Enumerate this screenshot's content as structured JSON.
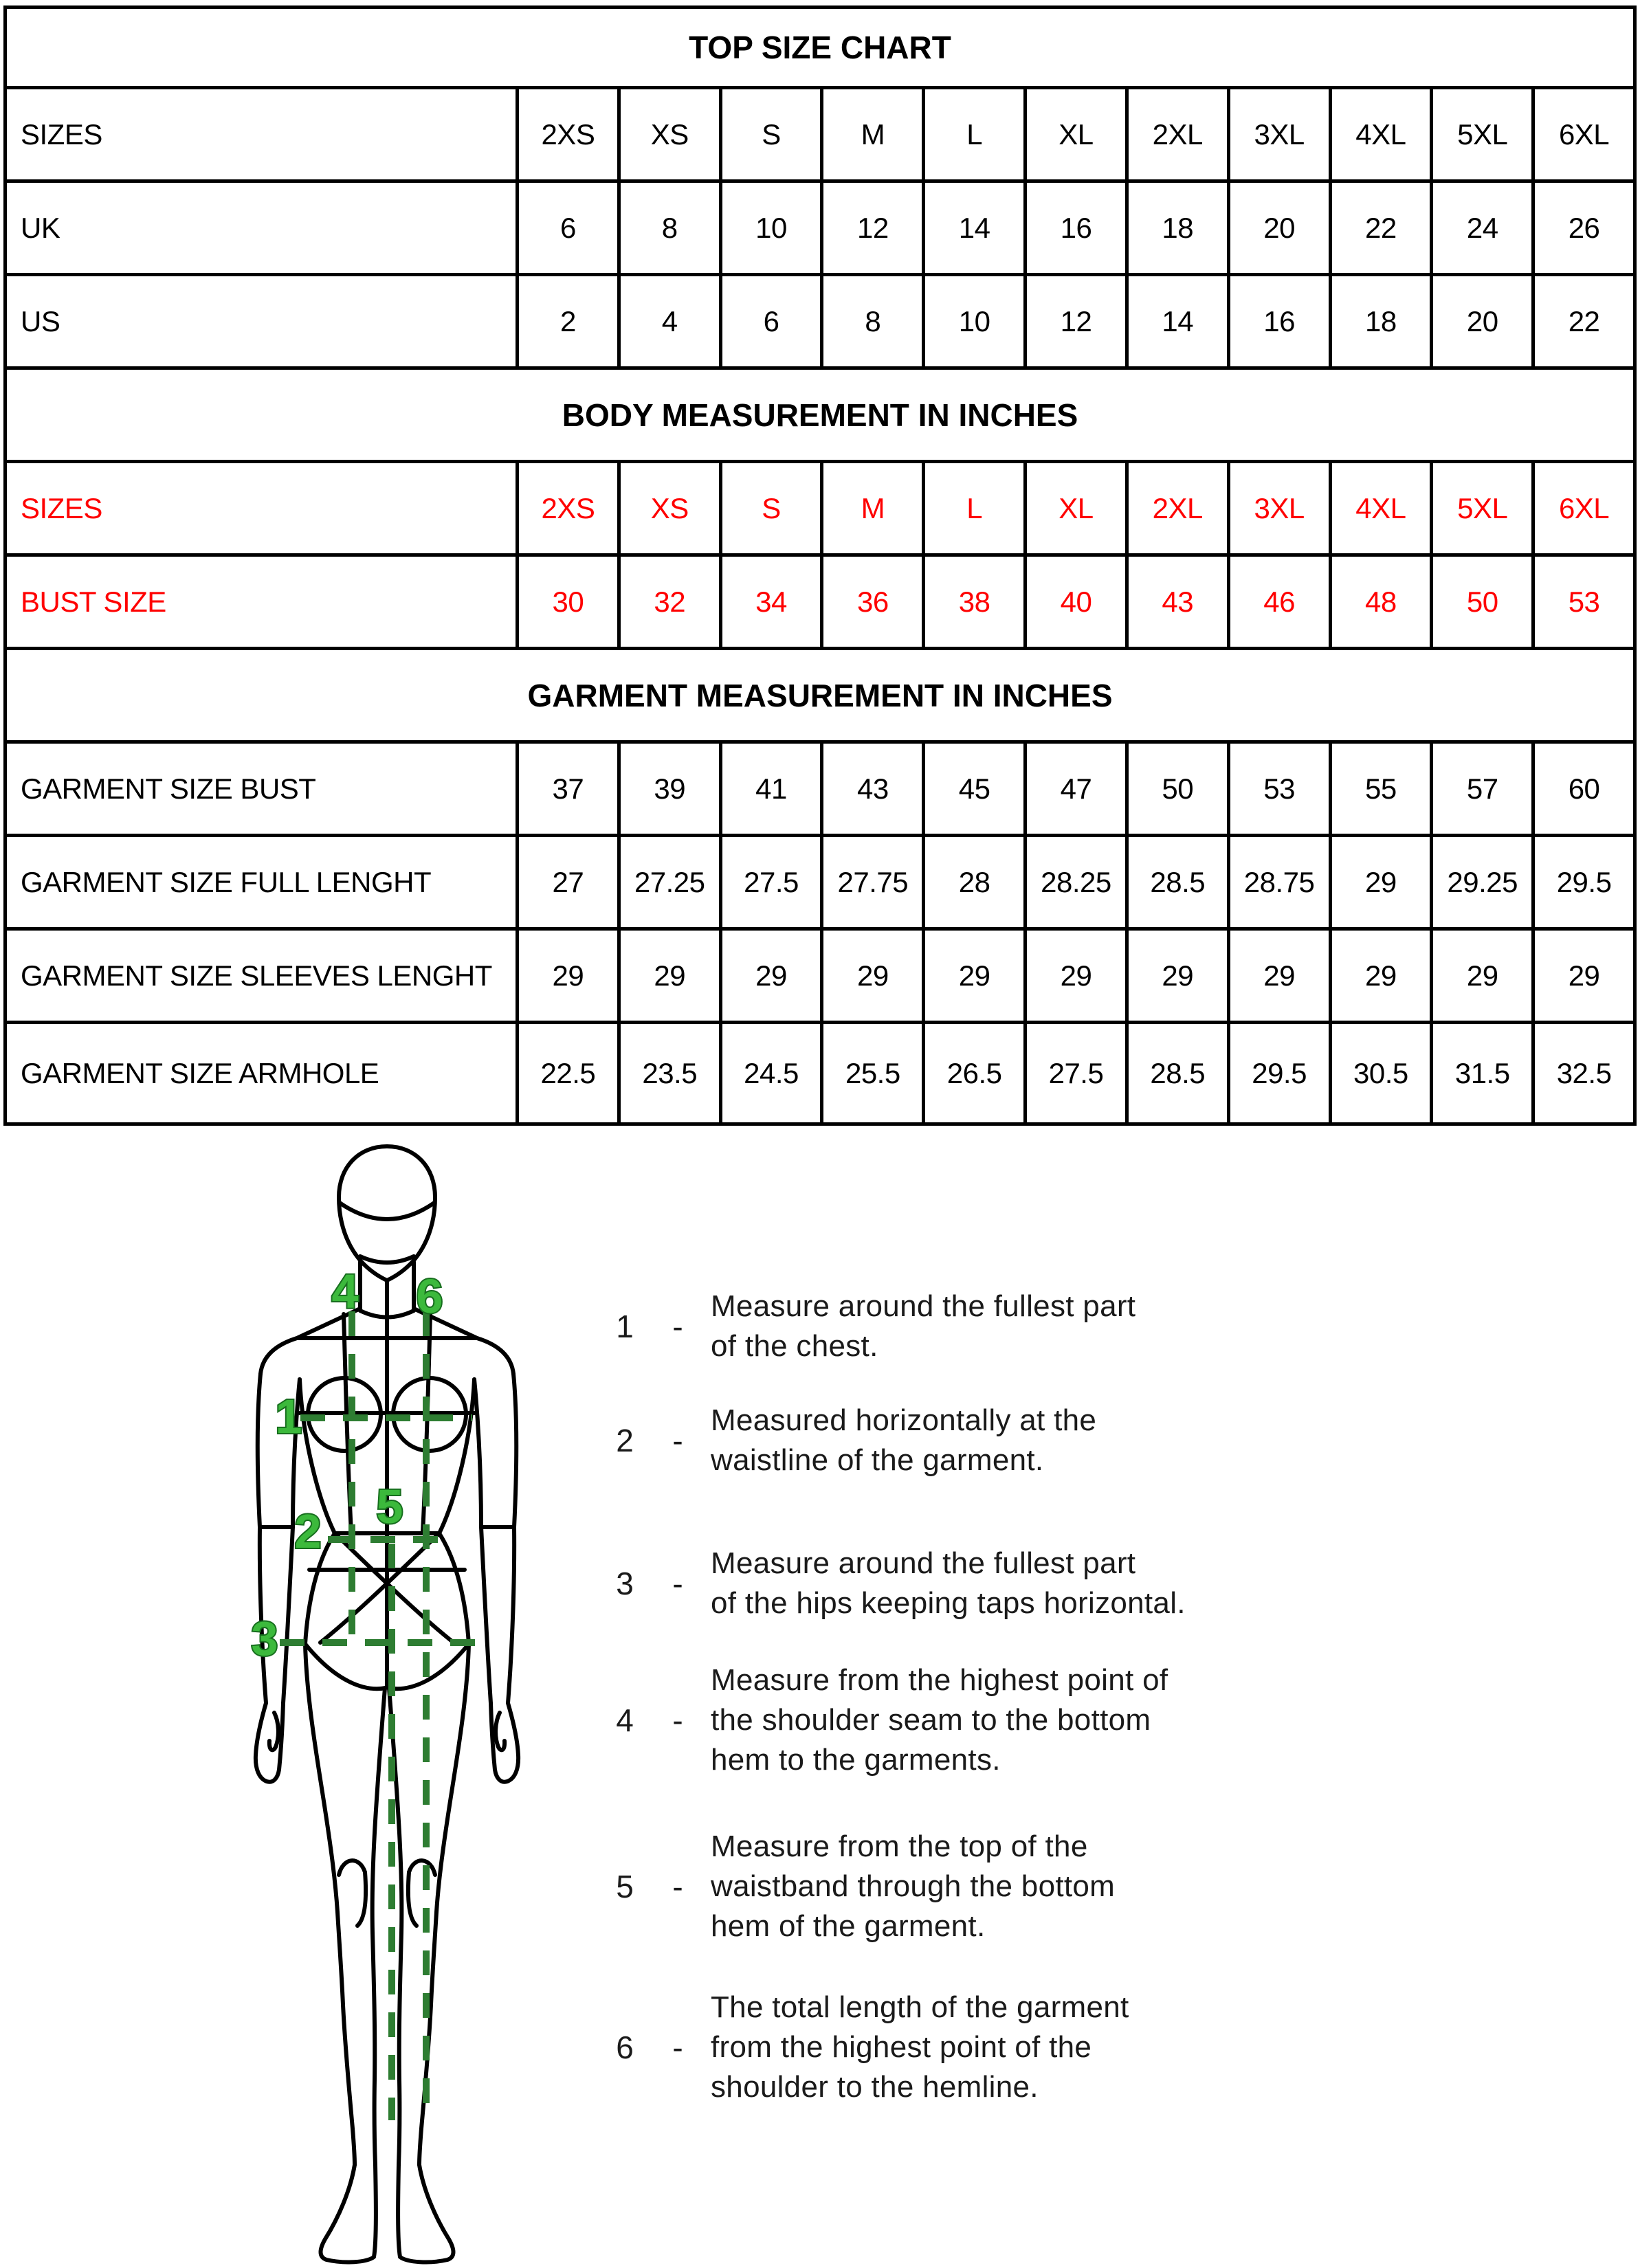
{
  "colors": {
    "table_border": "#000000",
    "text": "#000000",
    "red_text": "#ff0000",
    "green_dash_line": "#2e7d32",
    "green_label_fill": "#3cb93c",
    "green_label_stroke": "#176e1e"
  },
  "table": {
    "rows": [
      {
        "type": "title",
        "label": "TOP SIZE CHART"
      },
      {
        "type": "data",
        "color": "black",
        "label": "SIZES",
        "values": [
          "2XS",
          "XS",
          "S",
          "M",
          "L",
          "XL",
          "2XL",
          "3XL",
          "4XL",
          "5XL",
          "6XL"
        ]
      },
      {
        "type": "data",
        "color": "black",
        "label": "UK",
        "values": [
          "6",
          "8",
          "10",
          "12",
          "14",
          "16",
          "18",
          "20",
          "22",
          "24",
          "26"
        ]
      },
      {
        "type": "data",
        "color": "black",
        "label": "US",
        "values": [
          "2",
          "4",
          "6",
          "8",
          "10",
          "12",
          "14",
          "16",
          "18",
          "20",
          "22"
        ]
      },
      {
        "type": "title",
        "label": "BODY MEASUREMENT IN INCHES"
      },
      {
        "type": "data",
        "color": "red",
        "label": "SIZES",
        "values": [
          "2XS",
          "XS",
          "S",
          "M",
          "L",
          "XL",
          "2XL",
          "3XL",
          "4XL",
          "5XL",
          "6XL"
        ]
      },
      {
        "type": "data",
        "color": "red",
        "label": "BUST SIZE",
        "values": [
          "30",
          "32",
          "34",
          "36",
          "38",
          "40",
          "43",
          "46",
          "48",
          "50",
          "53"
        ]
      },
      {
        "type": "title",
        "label": "GARMENT MEASUREMENT IN INCHES"
      },
      {
        "type": "data",
        "color": "black",
        "label": "GARMENT SIZE BUST",
        "values": [
          "37",
          "39",
          "41",
          "43",
          "45",
          "47",
          "50",
          "53",
          "55",
          "57",
          "60"
        ]
      },
      {
        "type": "data",
        "color": "black",
        "label": "GARMENT SIZE FULL LENGHT",
        "values": [
          "27",
          "27.25",
          "27.5",
          "27.75",
          "28",
          "28.25",
          "28.5",
          "28.75",
          "29",
          "29.25",
          "29.5"
        ]
      },
      {
        "type": "data",
        "color": "black",
        "label": "GARMENT SIZE SLEEVES LENGHT",
        "values": [
          "29",
          "29",
          "29",
          "29",
          "29",
          "29",
          "29",
          "29",
          "29",
          "29",
          "29"
        ]
      },
      {
        "type": "data",
        "color": "black",
        "label": "GARMENT SIZE ARMHOLE",
        "values": [
          "22.5",
          "23.5",
          "24.5",
          "25.5",
          "26.5",
          "27.5",
          "28.5",
          "29.5",
          "30.5",
          "31.5",
          "32.5"
        ]
      }
    ]
  },
  "figure": {
    "labels": [
      "1",
      "2",
      "3",
      "4",
      "5",
      "6"
    ]
  },
  "instructions": {
    "items": [
      {
        "num": "1",
        "separator": "-",
        "lines": [
          "Measure around the fullest part",
          "of the chest."
        ]
      },
      {
        "num": "2",
        "separator": "-",
        "lines": [
          "Measured horizontally at the",
          "waistline of the garment."
        ]
      },
      {
        "num": "3",
        "separator": "-",
        "lines": [
          "Measure around the fullest part",
          "of the hips keeping taps horizontal."
        ]
      },
      {
        "num": "4",
        "separator": "-",
        "lines": [
          "Measure from the highest point of",
          "the shoulder seam to the bottom",
          "hem to the garments."
        ]
      },
      {
        "num": "5",
        "separator": "-",
        "lines": [
          "Measure from the top of the",
          "waistband through the bottom",
          "hem of the garment."
        ]
      },
      {
        "num": "6",
        "separator": "-",
        "lines": [
          "The total length of the garment",
          "from the highest point of the",
          "shoulder to the hemline."
        ]
      }
    ]
  }
}
